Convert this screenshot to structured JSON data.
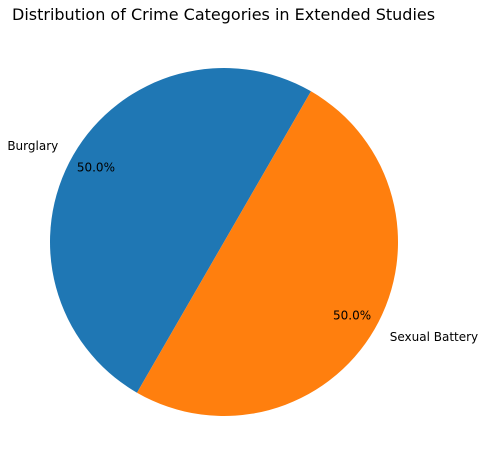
{
  "chart_data": {
    "type": "pie",
    "title": "Distribution of Crime Categories in Extended Studies",
    "categories": [
      "Burglary",
      "Sexual Battery"
    ],
    "values": [
      50.0,
      50.0
    ],
    "percent_labels": [
      "50.0%",
      "50.0%"
    ],
    "colors": [
      "#1f77b4",
      "#ff7f0e"
    ],
    "start_angle_deg": 60,
    "direction": "counterclockwise",
    "legend": "none"
  }
}
